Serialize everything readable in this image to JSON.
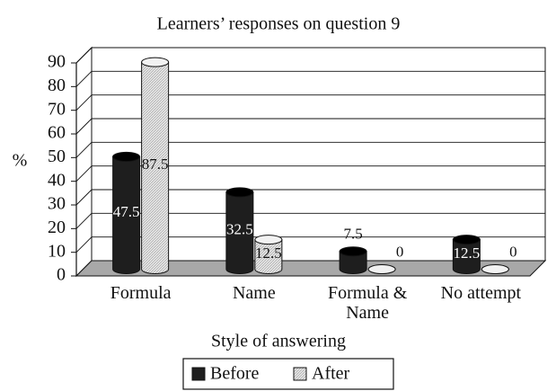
{
  "chart_data": {
    "type": "bar3d",
    "title": "Learners’ responses on question 9",
    "y_label": "%",
    "x_label": "Style of answering",
    "categories": [
      "Formula",
      "Name",
      "Formula & Name",
      "No attempt"
    ],
    "series": [
      {
        "name": "Before",
        "color": "#1e1e1e",
        "values": [
          47.5,
          32.5,
          7.5,
          12.5
        ]
      },
      {
        "name": "After",
        "color": "#e2e2e2",
        "values": [
          87.5,
          12.5,
          0,
          0
        ]
      }
    ],
    "ylim": [
      0,
      90
    ],
    "yticks": [
      0,
      10,
      20,
      30,
      40,
      50,
      60,
      70,
      80,
      90
    ],
    "grid": true,
    "legend": "bottom"
  }
}
